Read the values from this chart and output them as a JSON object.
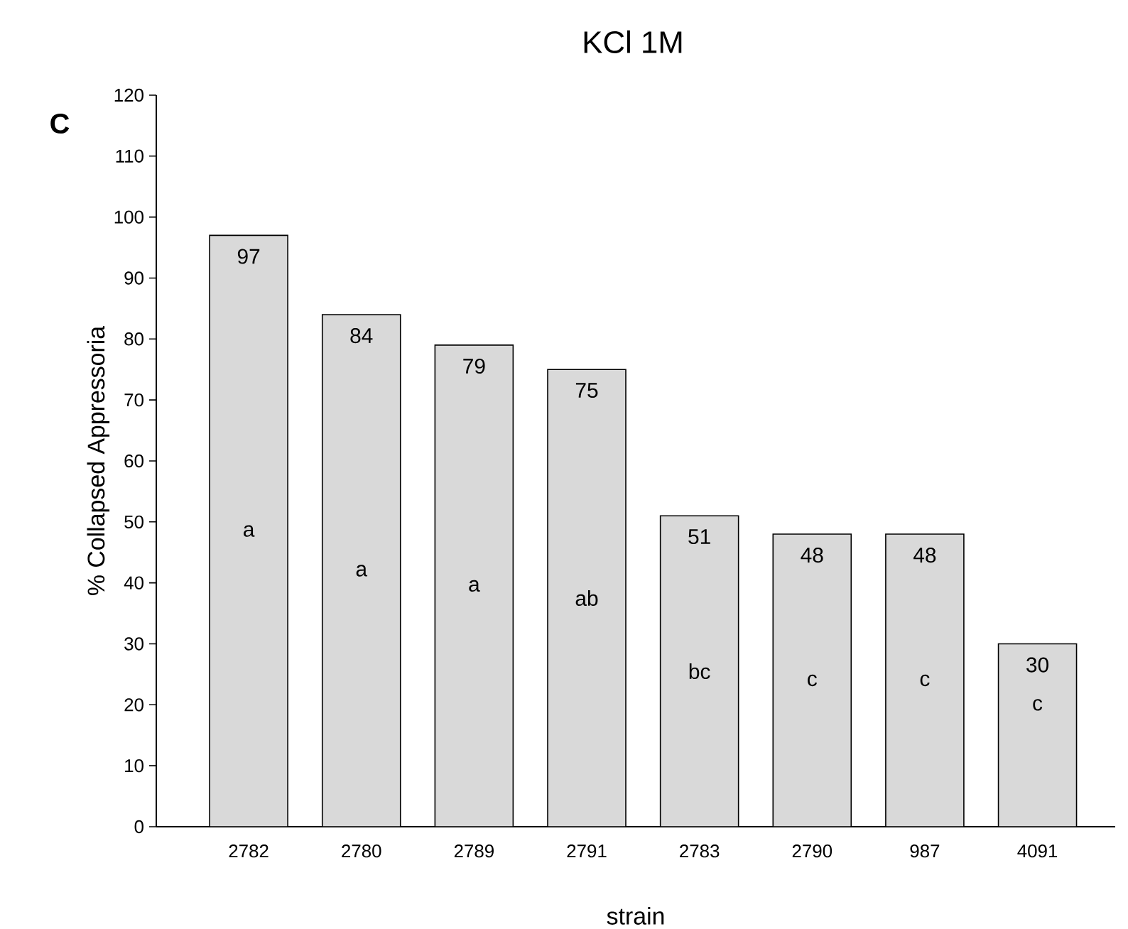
{
  "chart_data": {
    "type": "bar",
    "title": "KCl 1M",
    "xlabel": "strain",
    "ylabel": "% Collapsed Appressoria",
    "categories": [
      "2782",
      "2780",
      "2789",
      "2791",
      "2783",
      "2790",
      "987",
      "4091"
    ],
    "values": [
      97,
      84,
      79,
      75,
      51,
      48,
      48,
      30
    ],
    "color": "#d9d9d9",
    "ylim": [
      0,
      120
    ],
    "yticks": [
      0,
      10,
      20,
      30,
      40,
      50,
      60,
      70,
      80,
      90,
      100,
      110,
      120
    ],
    "data_labels": true,
    "annotations": [
      "C",
      "a",
      "a",
      "a",
      "ab",
      "bc",
      "c",
      "c",
      "c"
    ]
  }
}
